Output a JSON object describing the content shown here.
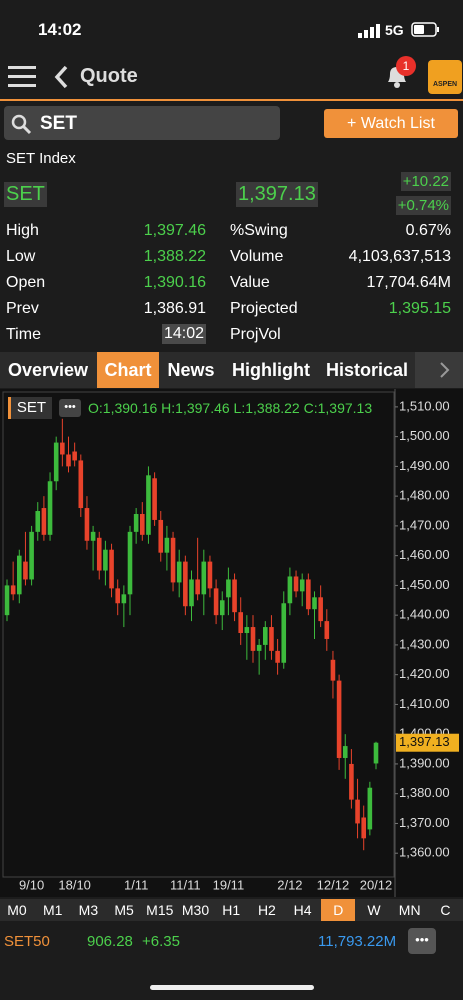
{
  "status_bar": {
    "time": "14:02",
    "network": "5G"
  },
  "header": {
    "title": "Quote",
    "badge": "1",
    "logo": "ASPEN"
  },
  "search": {
    "query": "SET",
    "button": "+ Watch List"
  },
  "quote": {
    "name": "SET Index",
    "symbol": "SET",
    "last": "1,397.13",
    "change": "+10.22",
    "change_pct": "+0.74%",
    "rows": [
      [
        "High",
        "1,397.46",
        "%Swing",
        "0.67%"
      ],
      [
        "Low",
        "1,388.22",
        "Volume",
        "4,103,637,513"
      ],
      [
        "Open",
        "1,390.16",
        "Value",
        "17,704.64M"
      ],
      [
        "Prev",
        "1,386.91",
        "Projected",
        "1,395.15"
      ],
      [
        "Time",
        "14:02",
        "ProjVol"
      ]
    ]
  },
  "tabs": [
    "Overview",
    "Chart",
    "News",
    "Highlight",
    "Historical"
  ],
  "active_tab": 1,
  "chart_data": {
    "type": "candlestick",
    "legend_symbol": "SET",
    "legend_ohlc": "O:1,390.16 H:1,397.46 L:1,388.22 C:1,397.13",
    "price_tag": "1,397.13",
    "up_color": "#3dbb3d",
    "down_color": "#e8432b",
    "ylim": [
      1352,
      1515
    ],
    "yticks": [
      {
        "value": 1360,
        "label": "1,360.00"
      },
      {
        "value": 1370,
        "label": "1,370.00"
      },
      {
        "value": 1380,
        "label": "1,380.00"
      },
      {
        "value": 1390,
        "label": "1,390.00"
      },
      {
        "value": 1400,
        "label": "1,400.00"
      },
      {
        "value": 1410,
        "label": "1,410.00"
      },
      {
        "value": 1420,
        "label": "1,420.00"
      },
      {
        "value": 1430,
        "label": "1,430.00"
      },
      {
        "value": 1440,
        "label": "1,440.00"
      },
      {
        "value": 1450,
        "label": "1,450.00"
      },
      {
        "value": 1460,
        "label": "1,460.00"
      },
      {
        "value": 1470,
        "label": "1,470.00"
      },
      {
        "value": 1480,
        "label": "1,480.00"
      },
      {
        "value": 1490,
        "label": "1,490.00"
      },
      {
        "value": 1500,
        "label": "1,500.00"
      },
      {
        "value": 1510,
        "label": "1,510.00"
      }
    ],
    "categories": [
      null,
      null,
      null,
      null,
      "9/10",
      null,
      null,
      null,
      null,
      null,
      null,
      "18/10",
      null,
      null,
      null,
      null,
      null,
      null,
      null,
      null,
      null,
      "1/11",
      null,
      null,
      null,
      null,
      null,
      null,
      null,
      "11/11",
      null,
      null,
      null,
      null,
      null,
      null,
      "19/11",
      null,
      null,
      null,
      null,
      null,
      null,
      null,
      null,
      null,
      "2/12",
      null,
      null,
      null,
      null,
      null,
      null,
      "12/12",
      null,
      null,
      null,
      null,
      null,
      null,
      "20/12"
    ],
    "open": [
      1440,
      1450,
      1447,
      1458,
      1452,
      1468,
      1476,
      1467,
      1485,
      1498,
      1494,
      1495,
      1492,
      1476,
      1465,
      1466,
      1455,
      1462,
      1449,
      1444,
      1447,
      1468,
      1474,
      1467,
      1486,
      1472,
      1461,
      1466,
      1451,
      1458,
      1443,
      1452,
      1447,
      1458,
      1449,
      1440,
      1446,
      1452,
      1441,
      1434,
      1436,
      1428,
      1430,
      1436,
      1428,
      1424,
      1444,
      1453,
      1448,
      1452,
      1442,
      1446,
      1438,
      1425,
      1418,
      1392,
      1390,
      1378,
      1372,
      1368,
      1390.16
    ],
    "high": [
      1452,
      1458,
      1462,
      1468,
      1470,
      1478,
      1480,
      1488,
      1500,
      1506,
      1500,
      1498,
      1494,
      1480,
      1470,
      1468,
      1465,
      1464,
      1452,
      1450,
      1470,
      1476,
      1478,
      1490,
      1488,
      1475,
      1470,
      1468,
      1462,
      1460,
      1455,
      1466,
      1462,
      1460,
      1452,
      1448,
      1456,
      1454,
      1446,
      1440,
      1440,
      1432,
      1438,
      1440,
      1432,
      1448,
      1456,
      1455,
      1454,
      1454,
      1448,
      1450,
      1442,
      1428,
      1420,
      1400,
      1395,
      1385,
      1376,
      1384,
      1397.46
    ],
    "low": [
      1438,
      1445,
      1444,
      1450,
      1450,
      1465,
      1465,
      1465,
      1482,
      1490,
      1488,
      1490,
      1473,
      1462,
      1455,
      1452,
      1450,
      1446,
      1440,
      1436,
      1440,
      1464,
      1465,
      1464,
      1470,
      1458,
      1455,
      1448,
      1446,
      1440,
      1438,
      1445,
      1440,
      1446,
      1437,
      1435,
      1440,
      1438,
      1430,
      1425,
      1424,
      1420,
      1425,
      1425,
      1420,
      1422,
      1440,
      1446,
      1443,
      1440,
      1432,
      1436,
      1428,
      1412,
      1388,
      1385,
      1375,
      1365,
      1361,
      1366,
      1388.22
    ],
    "close": [
      1450,
      1447,
      1460,
      1452,
      1468,
      1475,
      1467,
      1485,
      1498,
      1494,
      1490,
      1492,
      1476,
      1465,
      1468,
      1455,
      1462,
      1449,
      1444,
      1447,
      1468,
      1474,
      1467,
      1487,
      1472,
      1461,
      1466,
      1451,
      1458,
      1443,
      1452,
      1447,
      1458,
      1449,
      1440,
      1445,
      1452,
      1441,
      1434,
      1436,
      1428,
      1430,
      1436,
      1428,
      1424,
      1444,
      1453,
      1448,
      1452,
      1442,
      1446,
      1438,
      1432,
      1418,
      1392,
      1396,
      1378,
      1370,
      1365,
      1382,
      1397.13
    ]
  },
  "timeframes": [
    "M0",
    "M1",
    "M3",
    "M5",
    "M15",
    "M30",
    "H1",
    "H2",
    "H4",
    "D",
    "W",
    "MN",
    "C"
  ],
  "active_timeframe": 9,
  "ticker": {
    "symbol": "SET50",
    "price": "906.28",
    "change": "+6.35",
    "value": "11,793.22M"
  }
}
